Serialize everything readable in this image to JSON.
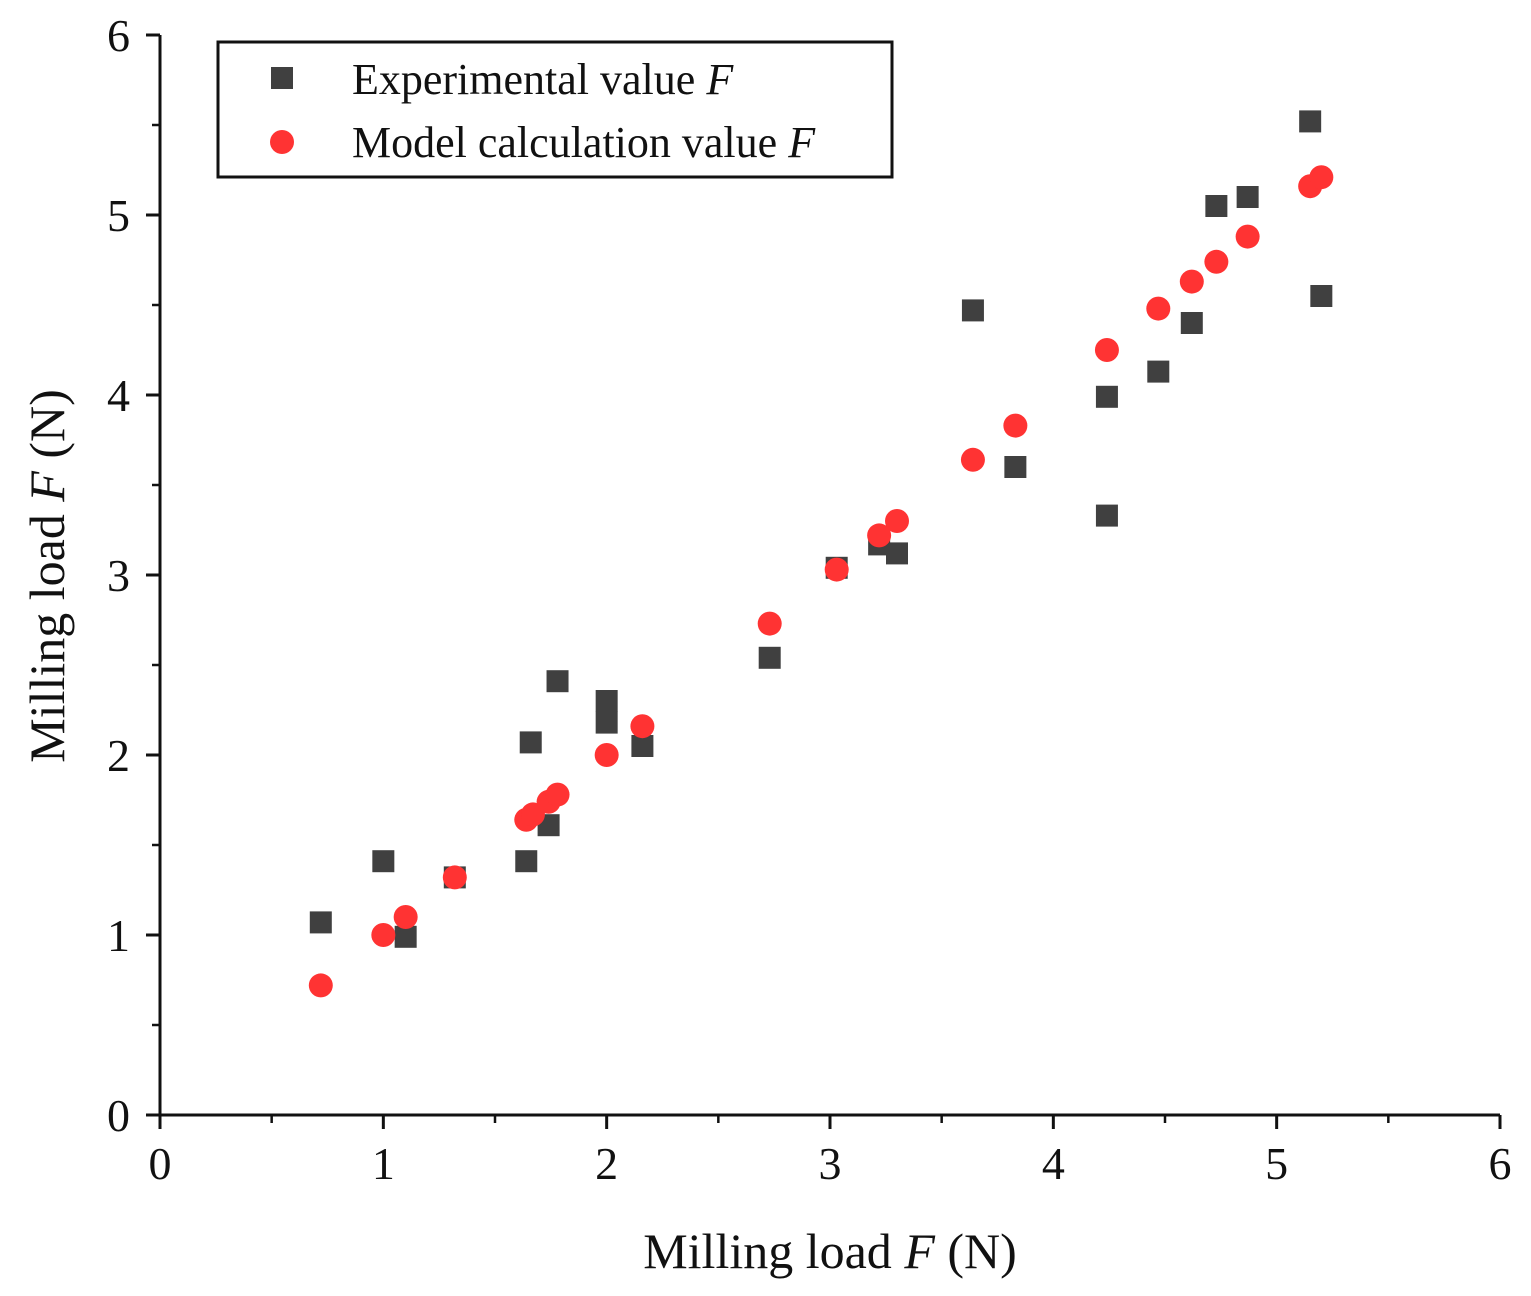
{
  "chart_data": {
    "type": "scatter",
    "xlabel": {
      "prefix": "Milling load ",
      "symbol": "F",
      "suffix": " (N)"
    },
    "ylabel": {
      "prefix": "Milling load ",
      "symbol": "F",
      "suffix": " (N)"
    },
    "xlim": [
      0,
      6
    ],
    "ylim": [
      0,
      6
    ],
    "xticks": [
      "0",
      "1",
      "2",
      "3",
      "4",
      "5",
      "6"
    ],
    "yticks": [
      "0",
      "1",
      "2",
      "3",
      "4",
      "5",
      "6"
    ],
    "grid": false,
    "legend_position": "top-left",
    "series": [
      {
        "name": "Experimental value F",
        "name_text": "Experimental value ",
        "name_symbol": "F",
        "marker": "square",
        "color": "#404040",
        "points": [
          [
            0.72,
            1.07
          ],
          [
            1.0,
            1.41
          ],
          [
            1.1,
            0.99
          ],
          [
            1.32,
            1.32
          ],
          [
            1.64,
            1.41
          ],
          [
            1.66,
            2.07
          ],
          [
            1.74,
            1.61
          ],
          [
            1.78,
            2.41
          ],
          [
            2.0,
            2.3
          ],
          [
            2.0,
            2.18
          ],
          [
            2.16,
            2.05
          ],
          [
            2.73,
            2.54
          ],
          [
            3.03,
            3.04
          ],
          [
            3.22,
            3.17
          ],
          [
            3.3,
            3.12
          ],
          [
            3.64,
            4.47
          ],
          [
            3.83,
            3.6
          ],
          [
            4.24,
            3.99
          ],
          [
            4.24,
            3.33
          ],
          [
            4.47,
            4.13
          ],
          [
            4.62,
            4.4
          ],
          [
            4.73,
            5.05
          ],
          [
            4.87,
            5.1
          ],
          [
            5.15,
            5.52
          ],
          [
            5.2,
            4.55
          ]
        ]
      },
      {
        "name": "Model calculation value F",
        "name_text": "Model calculation value ",
        "name_symbol": "F",
        "marker": "circle",
        "color": "#ff3333",
        "points": [
          [
            0.72,
            0.72
          ],
          [
            1.0,
            1.0
          ],
          [
            1.1,
            1.1
          ],
          [
            1.32,
            1.32
          ],
          [
            1.64,
            1.64
          ],
          [
            1.67,
            1.67
          ],
          [
            1.74,
            1.74
          ],
          [
            1.78,
            1.78
          ],
          [
            2.0,
            2.0
          ],
          [
            2.16,
            2.16
          ],
          [
            2.73,
            2.73
          ],
          [
            3.03,
            3.03
          ],
          [
            3.22,
            3.22
          ],
          [
            3.3,
            3.3
          ],
          [
            3.64,
            3.64
          ],
          [
            3.83,
            3.83
          ],
          [
            4.24,
            4.25
          ],
          [
            4.47,
            4.48
          ],
          [
            4.62,
            4.63
          ],
          [
            4.73,
            4.74
          ],
          [
            4.87,
            4.88
          ],
          [
            5.15,
            5.16
          ],
          [
            5.2,
            5.21
          ]
        ]
      }
    ]
  }
}
